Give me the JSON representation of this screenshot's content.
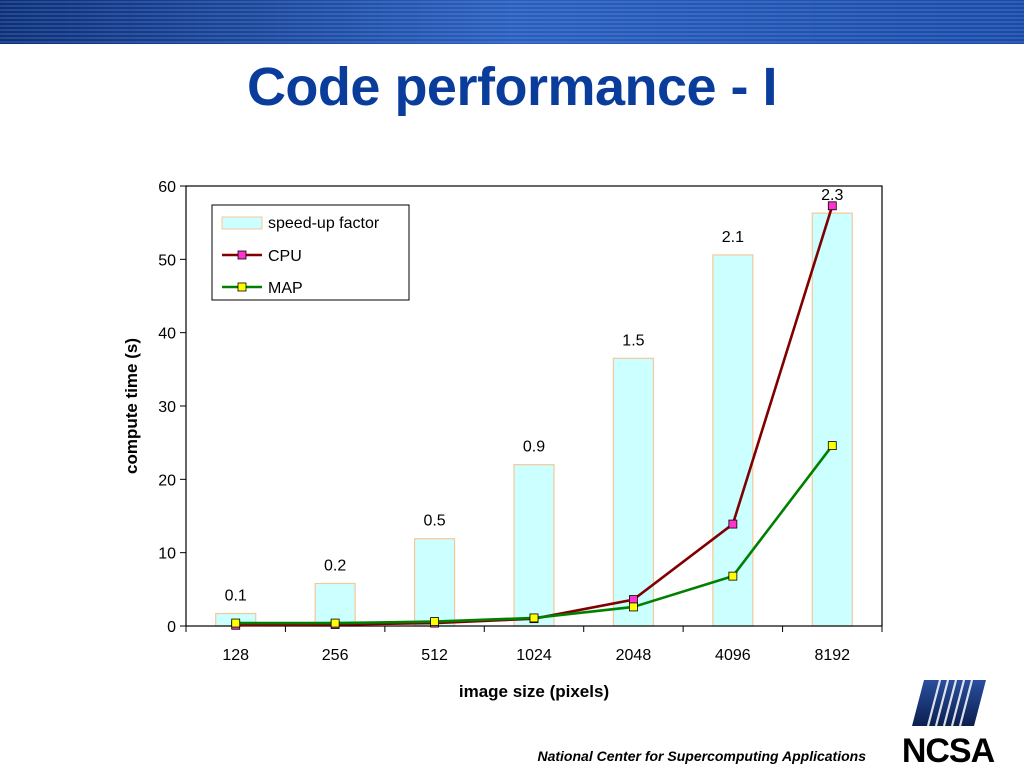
{
  "slide": {
    "title": "Code performance - I",
    "footer": "National Center for Supercomputing Applications",
    "logo_text": "NCSA"
  },
  "colors": {
    "title": "#0a3c9c",
    "banner_dark": "#123d8f",
    "banner_light": "#3a6ec8",
    "bar_fill": "#ccffff",
    "bar_stroke": "#f5c89a",
    "cpu_line": "#800000",
    "cpu_marker": "#ff33cc",
    "map_line": "#008000",
    "map_marker": "#ffff00"
  },
  "chart_data": {
    "type": "bar",
    "categories": [
      "128",
      "256",
      "512",
      "1024",
      "2048",
      "4096",
      "8192"
    ],
    "xlabel": "image size (pixels)",
    "ylabel": "compute time (s)",
    "ylim": [
      0,
      60
    ],
    "yticks": [
      0,
      10,
      20,
      30,
      40,
      50,
      60
    ],
    "legend_position": "top-left",
    "grid": false,
    "series": [
      {
        "name": "speed-up factor",
        "kind": "bar",
        "values": [
          1.7,
          5.8,
          11.9,
          22.0,
          36.5,
          50.6,
          56.3
        ],
        "data_labels": [
          "0.1",
          "0.2",
          "0.5",
          "0.9",
          "1.5",
          "2.1",
          "2.3"
        ]
      },
      {
        "name": "CPU",
        "kind": "line",
        "values": [
          0.1,
          0.2,
          0.4,
          1.0,
          3.6,
          13.9,
          57.3
        ]
      },
      {
        "name": "MAP",
        "kind": "line",
        "values": [
          0.4,
          0.4,
          0.6,
          1.1,
          2.6,
          6.8,
          24.6
        ]
      }
    ]
  }
}
